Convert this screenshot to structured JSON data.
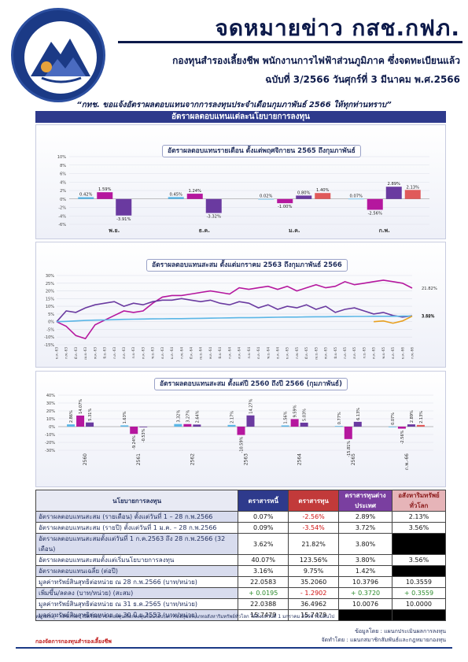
{
  "header": {
    "title": "จดหมายข่าว กสช.กฟภ.",
    "subtitle": "กองทุนสำรองเลี้ยงชีพ พนักงานการไฟฟ้าส่วนภูมิภาค ซึ่งจดทะเบียนแล้ว",
    "issue": "ฉบับที่ 3/2566 วันศุกร์ที่ 3 มีนาคม พ.ศ.2566",
    "notice": "“กทช. ขอแจ้งอัตราผลตอบแทนจากการลงทุนประจำเดือนกุมภาพันธ์ 2566 ให้ทุกท่านทราบ”",
    "section": "อัตราผลตอบแทนแต่ละนโยบายการลงทุน",
    "brand_color": "#1b3a86"
  },
  "chart_data": [
    {
      "type": "bar",
      "title": "อัตราผลตอบแทนรายเดือน ตั้งแต่พฤศจิกายน 2565 ถึงกุมภาพันธ์",
      "categories": [
        "พ.ย.",
        "ธ.ค.",
        "ม.ค.",
        "ก.พ."
      ],
      "ylim": [
        -6,
        10
      ],
      "yticks": [
        "10%",
        "8%",
        "6%",
        "4%",
        "2%",
        "0%",
        "-2%",
        "-4%",
        "-6%"
      ],
      "series": [
        {
          "color": "#5bb6e6",
          "values": [
            0.42,
            0.45,
            0.02,
            0.07
          ],
          "labels": [
            "0.42%",
            "0.45%",
            "0.02%",
            "0.07%"
          ]
        },
        {
          "color": "#b5179e",
          "values": [
            1.59,
            1.24,
            -1.0,
            -2.56
          ],
          "labels": [
            "1.59%",
            "1.24%",
            "-1.00%",
            "-2.56%"
          ]
        },
        {
          "color": "#6a3aa0",
          "values": [
            -3.91,
            -3.32,
            0.8,
            2.89
          ],
          "labels": [
            "-3.91%",
            "-3.32%",
            "0.80%",
            "2.89%"
          ]
        },
        {
          "color": "#e05a5a",
          "values": [
            null,
            null,
            1.4,
            2.13
          ],
          "labels": [
            "",
            "",
            "1.40%",
            "2.13%"
          ]
        }
      ]
    },
    {
      "type": "line",
      "title": "อัตราผลตอบแทนสะสม ตั้งแต่มกราคม 2563 ถึงกุมภาพันธ์ 2566",
      "x": [
        "ม.ค.-63",
        "ก.พ.-63",
        "มี.ค.-63",
        "เม.ย.-63",
        "พ.ค.-63",
        "มิ.ย.-63",
        "ก.ค.-63",
        "ส.ค.-63",
        "ก.ย.-63",
        "ต.ค.-63",
        "พ.ย.-63",
        "ธ.ค.-63",
        "ม.ค.-64",
        "ก.พ.-64",
        "มี.ค.-64",
        "เม.ย.-64",
        "พ.ค.-64",
        "มิ.ย.-64",
        "ก.ค.-64",
        "ส.ค.-64",
        "ก.ย.-64",
        "ต.ค.-64",
        "พ.ย.-64",
        "ธ.ค.-64",
        "ม.ค.-65",
        "ก.พ.-65",
        "มี.ค.-65",
        "เม.ย.-65",
        "พ.ค.-65",
        "มิ.ย.-65",
        "ก.ค.-65",
        "ส.ค.-65",
        "ก.ย.-65",
        "ต.ค.-65",
        "พ.ย.-65",
        "ธ.ค.-65",
        "ม.ค.-66",
        "ก.พ.-66"
      ],
      "ylim": [
        -15,
        30
      ],
      "yticks": [
        "30%",
        "25%",
        "20%",
        "15%",
        "10%",
        "5%",
        "0%",
        "-5%",
        "-10%",
        "-15%"
      ],
      "series": [
        {
          "color": "#b5179e",
          "end_label": "21.82%",
          "values": [
            0,
            -3,
            -9,
            -11,
            -2,
            1,
            4,
            7,
            6,
            7,
            12,
            16,
            17,
            17,
            18,
            19,
            20,
            19,
            18,
            22,
            21,
            22,
            23,
            21,
            23,
            20,
            22,
            24,
            22,
            23,
            26,
            24,
            25,
            26,
            27,
            26,
            25,
            21.82
          ]
        },
        {
          "color": "#6a3aa0",
          "end_label": "3.80%",
          "values": [
            0,
            7,
            6,
            9,
            11,
            12,
            13,
            10,
            12,
            11,
            13,
            14,
            14,
            15,
            14,
            13,
            14,
            12,
            11,
            13,
            12,
            9,
            11,
            8,
            10,
            9,
            11,
            8,
            10,
            6,
            8,
            9,
            7,
            5,
            6,
            4,
            3,
            3.8
          ]
        },
        {
          "color": "#5bb6e6",
          "end_label": "3.62%",
          "values": [
            0,
            0.2,
            0.5,
            0.8,
            1,
            1.1,
            1.3,
            1.5,
            1.6,
            1.7,
            1.8,
            1.9,
            2,
            2,
            2.1,
            2.2,
            2.3,
            2.4,
            2.5,
            2.6,
            2.6,
            2.7,
            2.8,
            2.9,
            3,
            3,
            3.1,
            3.2,
            3.2,
            3.3,
            3.3,
            3.4,
            3.4,
            3.5,
            3.5,
            3.5,
            3.6,
            3.62
          ]
        },
        {
          "color": "#e8a020",
          "end_label": "3.56%",
          "values": [
            null,
            null,
            null,
            null,
            null,
            null,
            null,
            null,
            null,
            null,
            null,
            null,
            null,
            null,
            null,
            null,
            null,
            null,
            null,
            null,
            null,
            null,
            null,
            null,
            null,
            null,
            null,
            null,
            null,
            null,
            null,
            null,
            null,
            0,
            0.5,
            -1,
            0.5,
            3.56
          ]
        }
      ]
    },
    {
      "type": "bar",
      "title": "อัตราผลตอบแทนสะสม ตั้งแต่ปี 2560 ถึงปี 2566 (กุมภาพันธ์)",
      "categories": [
        "2560",
        "2561",
        "2562",
        "2563",
        "2564",
        "2565",
        "ก.พ.-66"
      ],
      "ylim": [
        -30,
        40
      ],
      "yticks": [
        "40%",
        "30%",
        "20%",
        "10%",
        "0%",
        "-10%",
        "-20%",
        "-30%"
      ],
      "series": [
        {
          "color": "#5bb6e6",
          "values": [
            2.86,
            1.63,
            3.32,
            2.17,
            1.56,
            0.77,
            0.07
          ],
          "labels": [
            "2.86%",
            "1.63%",
            "3.32%",
            "2.17%",
            "1.56%",
            "0.77%",
            "0.07%"
          ]
        },
        {
          "color": "#b5179e",
          "values": [
            14.07,
            -9.24,
            3.27,
            -10.59,
            9.59,
            -15.81,
            -2.56
          ],
          "labels": [
            "14.07%",
            "-9.24%",
            "3.27%",
            "-10.59%",
            "9.59%",
            "-15.81%",
            "-2.56%"
          ]
        },
        {
          "color": "#6a3aa0",
          "values": [
            5.31,
            -0.53,
            2.64,
            14.27,
            5.03,
            6.13,
            2.89
          ],
          "labels": [
            "5.31%",
            "-0.53%",
            "2.64%",
            "14.27%",
            "5.03%",
            "6.13%",
            "2.89%"
          ]
        },
        {
          "color": "#e05a5a",
          "values": [
            null,
            null,
            null,
            null,
            null,
            null,
            2.13
          ],
          "labels": [
            "",
            "",
            "",
            "",
            "",
            "",
            "2.13%"
          ]
        }
      ]
    }
  ],
  "table": {
    "headers": [
      "นโยบายการลงทุน",
      "ตราสารหนี้",
      "ตราสารทุน",
      "ตราสารทุนต่างประเทศ",
      "อสังหาริมทรัพย์ทั่วโลก"
    ],
    "rows": [
      {
        "label": "อัตราผลตอบแทนสะสม (รายเดือน) ตั้งแต่วันที่ 1 – 28 ก.พ.2566",
        "cells": [
          "0.07%",
          "-2.56%",
          "2.89%",
          "2.13%"
        ]
      },
      {
        "label": "อัตราผลตอบแทนสะสม (รายปี) ตั้งแต่วันที่ 1 ม.ค. – 28 ก.พ.2566",
        "cells": [
          "0.09%",
          "-3.54%",
          "3.72%",
          "3.56%"
        ]
      },
      {
        "label": "อัตราผลตอบแทนสะสมตั้งแต่วันที่ 1 ก.ค.2563 ถึง 28 ก.พ.2566 (32 เดือน)",
        "cells": [
          "3.62%",
          "21.82%",
          "3.80%",
          ""
        ]
      },
      {
        "label": "อัตราผลตอบแทนสะสมตั้งแต่เริ่มนโยบายการลงทุน",
        "cells": [
          "40.07%",
          "123.56%",
          "3.80%",
          "3.56%"
        ]
      },
      {
        "label": "อัตราผลตอบแทนเฉลี่ย (ต่อปี)",
        "cells": [
          "3.16%",
          "9.75%",
          "1.42%",
          ""
        ]
      },
      {
        "label": "มูลค่าทรัพย์สินสุทธิต่อหน่วย ณ 28 ก.พ.2566 (บาท/หน่วย)",
        "cells": [
          "22.0583",
          "35.2060",
          "10.3796",
          "10.3559"
        ]
      },
      {
        "label": "เพิ่มขึ้น/ลดลง (บาท/หน่วย) (สะสม)",
        "cells": [
          "+ 0.0195",
          "- 1.2902",
          "+ 0.3720",
          "+ 0.3559"
        ]
      },
      {
        "label": "มูลค่าทรัพย์สินสุทธิต่อหน่วย ณ 31 ธ.ค.2565 (บาท/หน่วย)",
        "cells": [
          "22.0388",
          "36.4962",
          "10.0076",
          "10.0000"
        ]
      },
      {
        "label": "มูลค่าทรัพย์สินสุทธิต่อหน่วย ณ 30 มิ.ย.2553 (บาท/หน่วย)",
        "cells": [
          "15.7479",
          "15.7479",
          "",
          ""
        ]
      }
    ]
  },
  "footer": {
    "note": "หมายเหตุ - กสช.กฟภ. เปิดให้สมาชิกกองทุนเลือกลงทุนในนโยบายการลงทุนประเภทอสังหาริมทรัพย์ทั่วโลก ได้ตั้งแต่วันที่ 1 มกราคม 2566 เป็นต้นไป",
    "credit1": "ข้อมูลโดย : แผนกประเมินผลการลงทุน",
    "credit2": "จัดทำโดย : แผนกสมาชิกสัมพันธ์และกฎหมายกองทุน",
    "org": "กองจัดการกองทุนสำรองเลี้ยงชีพ"
  }
}
